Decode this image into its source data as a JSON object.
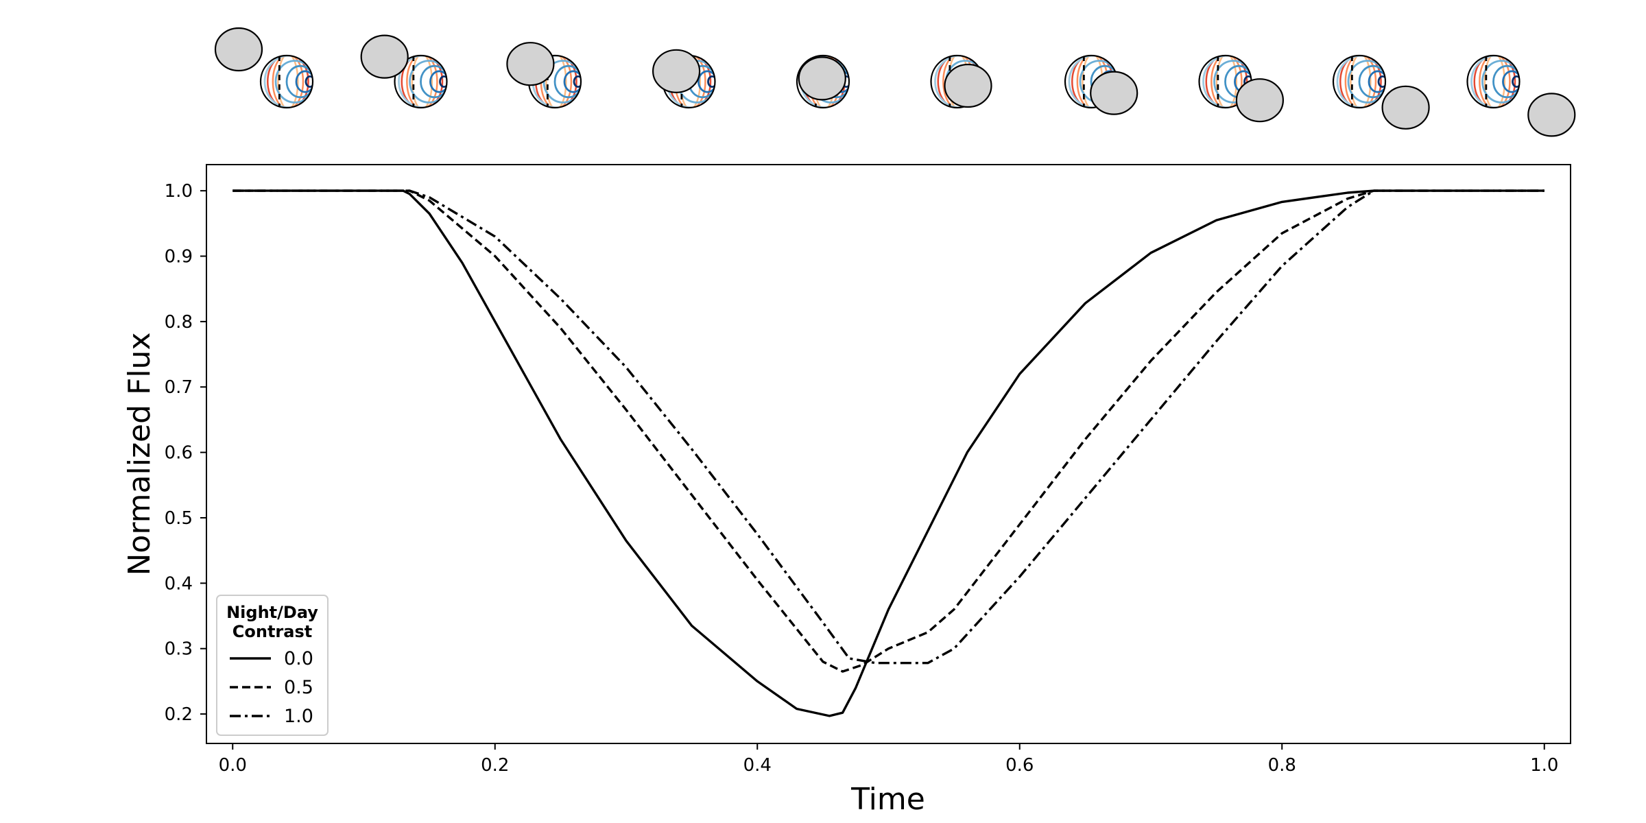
{
  "chart_data": {
    "type": "line",
    "title": "",
    "xlabel": "Time",
    "ylabel": "Normalized Flux",
    "xlim": [
      -0.02,
      1.02
    ],
    "ylim": [
      0.155,
      1.04
    ],
    "xticks": [
      0.0,
      0.2,
      0.4,
      0.6,
      0.8,
      1.0
    ],
    "xtick_labels": [
      "0.0",
      "0.2",
      "0.4",
      "0.6",
      "0.8",
      "1.0"
    ],
    "yticks": [
      0.2,
      0.3,
      0.4,
      0.5,
      0.6,
      0.7,
      0.8,
      0.9,
      1.0
    ],
    "ytick_labels": [
      "0.2",
      "0.3",
      "0.4",
      "0.5",
      "0.6",
      "0.7",
      "0.8",
      "0.9",
      "1.0"
    ],
    "grid": false,
    "legend": {
      "title": "Night/Day\nContrast",
      "title_lines": [
        "Night/Day",
        "Contrast"
      ],
      "placement": "lower-left"
    },
    "series": [
      {
        "name": "0.0",
        "linestyle": "solid",
        "color": "#000000",
        "x": [
          0.0,
          0.13,
          0.135,
          0.15,
          0.175,
          0.2,
          0.25,
          0.3,
          0.35,
          0.4,
          0.43,
          0.455,
          0.465,
          0.475,
          0.5,
          0.53,
          0.56,
          0.6,
          0.65,
          0.7,
          0.75,
          0.8,
          0.85,
          0.87,
          1.0
        ],
        "y": [
          1.0,
          1.0,
          0.995,
          0.965,
          0.89,
          0.8,
          0.62,
          0.465,
          0.335,
          0.25,
          0.208,
          0.197,
          0.202,
          0.24,
          0.36,
          0.48,
          0.6,
          0.72,
          0.828,
          0.905,
          0.955,
          0.983,
          0.997,
          1.0,
          1.0
        ]
      },
      {
        "name": "0.5",
        "linestyle": "dashed",
        "color": "#000000",
        "x": [
          0.0,
          0.135,
          0.15,
          0.2,
          0.25,
          0.3,
          0.35,
          0.4,
          0.45,
          0.465,
          0.48,
          0.5,
          0.53,
          0.55,
          0.6,
          0.65,
          0.7,
          0.75,
          0.8,
          0.85,
          0.87,
          1.0
        ],
        "y": [
          1.0,
          1.0,
          0.985,
          0.9,
          0.79,
          0.665,
          0.535,
          0.405,
          0.28,
          0.265,
          0.275,
          0.3,
          0.325,
          0.36,
          0.49,
          0.62,
          0.74,
          0.845,
          0.935,
          0.988,
          1.0,
          1.0
        ]
      },
      {
        "name": "1.0",
        "linestyle": "dashdot",
        "color": "#000000",
        "x": [
          0.0,
          0.135,
          0.15,
          0.2,
          0.25,
          0.3,
          0.35,
          0.4,
          0.45,
          0.47,
          0.49,
          0.53,
          0.55,
          0.6,
          0.65,
          0.7,
          0.75,
          0.8,
          0.85,
          0.87,
          1.0
        ],
        "y": [
          1.0,
          1.0,
          0.99,
          0.93,
          0.835,
          0.73,
          0.605,
          0.475,
          0.34,
          0.285,
          0.278,
          0.278,
          0.3,
          0.41,
          0.53,
          0.65,
          0.77,
          0.885,
          0.975,
          1.0,
          1.0
        ]
      }
    ],
    "illustration": {
      "frames": 10,
      "planet_colors": {
        "dayside": [
          "#08306b",
          "#2171b5",
          "#4292c6",
          "#6baed6",
          "#9ecae1"
        ],
        "nightside": [
          "#e34a33",
          "#fc8d59",
          "#fdbb84"
        ],
        "terminator": "#000000"
      },
      "occultor_fill": "#d3d3d3",
      "outline_color": "#000000"
    }
  }
}
